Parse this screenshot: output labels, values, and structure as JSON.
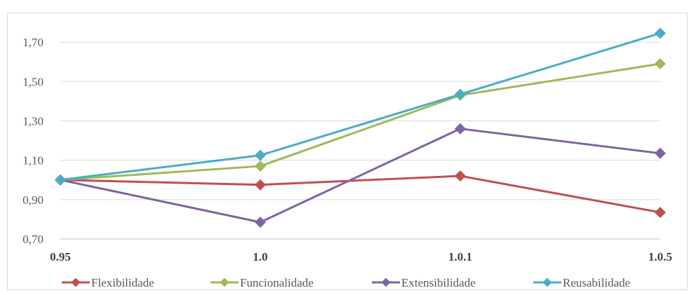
{
  "chart_data": {
    "type": "line",
    "categories": [
      "0.95",
      "1.0",
      "1.0.1",
      "1.0.5"
    ],
    "ylim": [
      0.7,
      1.8
    ],
    "yticks": [
      "0,70",
      "0,90",
      "1,10",
      "1,30",
      "1,50",
      "1,70"
    ],
    "grid": true,
    "legend_position": "bottom",
    "series": [
      {
        "name": "Flexibilidade",
        "color": "#c0504d",
        "values": [
          1.0,
          0.975,
          1.02,
          0.835
        ]
      },
      {
        "name": "Funcionalidade",
        "color": "#9bbb59",
        "values": [
          1.0,
          1.07,
          1.43,
          1.59
        ]
      },
      {
        "name": "Extensibilidade",
        "color": "#8064a2",
        "values": [
          1.0,
          0.785,
          1.26,
          1.135
        ]
      },
      {
        "name": "Reusabilidade",
        "color": "#4bacc6",
        "values": [
          1.0,
          1.125,
          1.435,
          1.745
        ]
      }
    ]
  }
}
